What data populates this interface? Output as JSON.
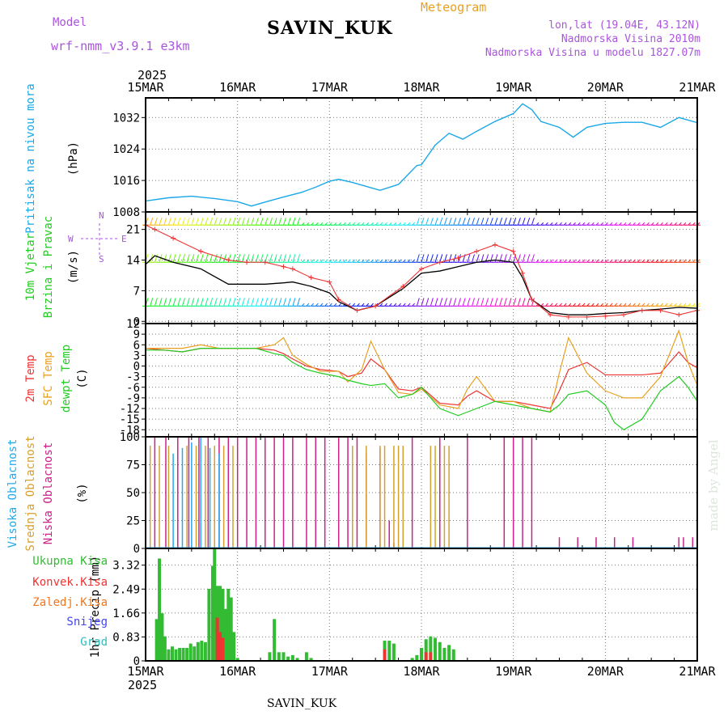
{
  "header": {
    "model_label": "Model",
    "model_name": "wrf-nmm_v3.9.1 e3km",
    "title": "SAVIN_KUK",
    "subtitle": "Meteogram",
    "coords": "lon,lat (19.04E, 43.12N)",
    "elevation": "Nadmorska Visina 2010m",
    "model_elevation": "Nadmorska Visina u modelu 1827.07m",
    "year_top": "2025",
    "year_bottom": "2025",
    "footer": "SAVIN_KUK",
    "watermark": "made by Angel"
  },
  "colors": {
    "pressure": "#1aa8e8",
    "wind_label": "#22cc22",
    "wind_dir": "#aa55dd",
    "t2m": "#ee3333",
    "tsfc": "#e8a020",
    "dewpt": "#22cc22",
    "cloud_high": "#22aaee",
    "cloud_mid": "#d4a030",
    "cloud_low": "#cc2288",
    "precip_total": "#33bb33",
    "precip_conv": "#ee3333",
    "precip_frz": "#ee7722",
    "precip_snow": "#4444ee",
    "precip_grad": "#33bbbb",
    "model": "#aa55dd"
  },
  "chart_data": [
    {
      "type": "line",
      "name": "pressure",
      "x_start": "15MAR",
      "x_end": "21MAR",
      "x_ticks": [
        "15MAR",
        "16MAR",
        "17MAR",
        "18MAR",
        "19MAR",
        "20MAR",
        "21MAR"
      ],
      "ylabel_title": "Pritisak na nivou mora",
      "ylabel_unit": "(hPa)",
      "yticks": [
        "1008",
        "1016",
        "1024",
        "1032"
      ],
      "ylim": [
        1008,
        1037
      ],
      "series": [
        {
          "name": "MSLP",
          "x": [
            0,
            0.25,
            0.5,
            0.75,
            1.0,
            1.15,
            1.3,
            1.5,
            1.7,
            1.85,
            2.0,
            2.1,
            2.25,
            2.4,
            2.55,
            2.75,
            2.95,
            3.0,
            3.15,
            3.3,
            3.45,
            3.6,
            3.8,
            4.0,
            4.1,
            4.2,
            4.3,
            4.5,
            4.65,
            4.8,
            5.0,
            5.2,
            5.4,
            5.6,
            5.8,
            6.0
          ],
          "values": [
            1010.8,
            1011.6,
            1012,
            1011.4,
            1010.6,
            1009.5,
            1010.5,
            1011.8,
            1013,
            1014.3,
            1015.8,
            1016.3,
            1015.5,
            1014.5,
            1013.5,
            1015,
            1019.8,
            1020,
            1025,
            1028,
            1026.5,
            1028.5,
            1031,
            1033,
            1035.5,
            1034,
            1031,
            1029.5,
            1027,
            1029.5,
            1030.5,
            1030.8,
            1030.8,
            1029.5,
            1032,
            1030.7
          ]
        }
      ]
    },
    {
      "type": "line",
      "name": "wind",
      "ylabel_title": "10m Vjetar",
      "ylabel_title2": "Brzina i Pravac",
      "ylabel_unit": "(m/s)",
      "compass": {
        "w": "W",
        "n": "N",
        "s": "S",
        "e": "E"
      },
      "yticks": [
        "0",
        "7",
        "14",
        "21"
      ],
      "ylim": [
        -0.5,
        25
      ],
      "series": [
        {
          "name": "wind_speed",
          "x": [
            0,
            0.1,
            0.3,
            0.6,
            0.9,
            1.1,
            1.3,
            1.5,
            1.6,
            1.8,
            2.0,
            2.1,
            2.3,
            2.5,
            2.8,
            3.0,
            3.2,
            3.4,
            3.6,
            3.8,
            4.0,
            4.1,
            4.2,
            4.4,
            4.6,
            4.8,
            5.0,
            5.2,
            5.4,
            5.6,
            5.8,
            6.0
          ],
          "values": [
            13,
            15,
            13.5,
            12,
            8.5,
            8.5,
            8.5,
            8.8,
            9,
            8,
            6.5,
            4.5,
            2.5,
            3.5,
            7.5,
            11,
            11.5,
            12.5,
            13.5,
            14,
            13.5,
            10,
            5,
            2,
            1.5,
            1.5,
            1.8,
            2,
            2.5,
            2.8,
            3.2,
            3
          ]
        },
        {
          "name": "wind_gust",
          "x": [
            0,
            0.1,
            0.3,
            0.6,
            0.9,
            1.1,
            1.3,
            1.5,
            1.6,
            1.8,
            2.0,
            2.1,
            2.3,
            2.5,
            2.8,
            3.0,
            3.2,
            3.4,
            3.6,
            3.8,
            4.0,
            4.1,
            4.2,
            4.4,
            4.6,
            4.8,
            5.0,
            5.2,
            5.4,
            5.6,
            5.8,
            6.0
          ],
          "values": [
            22,
            21,
            19,
            16,
            14,
            13.5,
            13.5,
            12.5,
            12,
            10,
            9,
            5,
            2.5,
            3.5,
            8,
            12,
            13.5,
            14.5,
            16,
            17.5,
            16,
            11,
            5,
            1.5,
            1,
            1,
            1.2,
            1.5,
            2.5,
            2.5,
            1.5,
            2.5
          ]
        }
      ]
    },
    {
      "type": "line",
      "name": "temperature",
      "ylabel_title": "2m Temp",
      "ylabel_title2": "SFC Temp",
      "ylabel_title3": "dewpt Temp",
      "ylabel_unit": "(C)",
      "yticks": [
        "-18",
        "-15",
        "-12",
        "-9",
        "-6",
        "-3",
        "0",
        "3",
        "6",
        "9",
        "12"
      ],
      "ylim": [
        -20,
        12
      ],
      "series": [
        {
          "name": "t2m",
          "x": [
            0,
            0.2,
            0.4,
            0.6,
            0.8,
            1.0,
            1.2,
            1.4,
            1.5,
            1.6,
            1.75,
            1.9,
            2.1,
            2.2,
            2.35,
            2.45,
            2.6,
            2.75,
            2.9,
            3.0,
            3.2,
            3.4,
            3.5,
            3.6,
            3.8,
            4.0,
            4.2,
            4.4,
            4.5,
            4.6,
            4.8,
            5.0,
            5.1,
            5.2,
            5.4,
            5.6,
            5.8,
            5.9,
            6.0
          ],
          "values": [
            5,
            4.5,
            4,
            5,
            5,
            5,
            5,
            4.5,
            3.5,
            2,
            0,
            -1,
            -1.5,
            -3,
            -2,
            2,
            -1,
            -6.5,
            -7,
            -6,
            -10.5,
            -11,
            -8.5,
            -7,
            -10,
            -10,
            -11,
            -12,
            -7,
            -1,
            1,
            -2.5,
            -2.5,
            -2.5,
            -2.5,
            -2,
            4,
            1,
            -0.5
          ]
        },
        {
          "name": "tsfc",
          "x": [
            0,
            0.2,
            0.4,
            0.6,
            0.8,
            1.0,
            1.2,
            1.4,
            1.5,
            1.6,
            1.75,
            1.9,
            2.1,
            2.2,
            2.35,
            2.45,
            2.6,
            2.75,
            2.9,
            3.0,
            3.2,
            3.4,
            3.5,
            3.6,
            3.8,
            4.0,
            4.2,
            4.4,
            4.5,
            4.6,
            4.8,
            5.0,
            5.1,
            5.2,
            5.4,
            5.6,
            5.8,
            5.9,
            6.0
          ],
          "values": [
            5,
            5,
            5,
            6,
            5,
            5,
            5,
            6,
            8,
            3,
            0.5,
            -1.5,
            -1.5,
            -4.5,
            -1,
            7,
            -1,
            -7.5,
            -8,
            -6.5,
            -11,
            -12,
            -6.5,
            -3,
            -10,
            -10,
            -12,
            -13,
            -2,
            8,
            -2,
            -7,
            -8,
            -9,
            -9,
            -3,
            10,
            1,
            -5.5
          ]
        },
        {
          "name": "dewpt",
          "x": [
            0,
            0.2,
            0.4,
            0.6,
            0.8,
            1.0,
            1.2,
            1.4,
            1.5,
            1.6,
            1.75,
            1.9,
            2.1,
            2.2,
            2.35,
            2.45,
            2.6,
            2.75,
            2.9,
            3.0,
            3.2,
            3.4,
            3.5,
            3.6,
            3.8,
            4.0,
            4.2,
            4.4,
            4.5,
            4.6,
            4.8,
            5.0,
            5.1,
            5.2,
            5.4,
            5.6,
            5.8,
            5.9,
            6.0
          ],
          "values": [
            4.5,
            4.5,
            4,
            5,
            5,
            5,
            5,
            3.5,
            3,
            1,
            -1,
            -2,
            -3,
            -4,
            -5,
            -5.5,
            -5,
            -9,
            -8,
            -6,
            -12,
            -14,
            -13,
            -12,
            -10,
            -11,
            -12,
            -13,
            -11,
            -8,
            -7,
            -11,
            -16,
            -18,
            -15,
            -7,
            -3,
            -6,
            -10
          ]
        }
      ]
    },
    {
      "type": "bar",
      "name": "cloud",
      "ylabel_title": "Visoka Oblacnost",
      "ylabel_title2": "Srednja Oblacnost",
      "ylabel_title3": "Niska Oblacnost",
      "ylabel_unit": "(%)",
      "yticks": [
        "0",
        "25",
        "50",
        "75",
        "100"
      ],
      "ylim": [
        0,
        100
      ],
      "series": [
        {
          "name": "low",
          "x": [
            0.1,
            0.22,
            0.35,
            0.47,
            0.58,
            0.68,
            0.8,
            0.9,
            1.0,
            1.1,
            1.2,
            1.3,
            1.4,
            1.5,
            1.6,
            1.75,
            1.85,
            1.95,
            2.1,
            2.2,
            2.3,
            2.4,
            2.55,
            2.65,
            2.7,
            2.9,
            3.2,
            3.5,
            3.9,
            4.0,
            4.1,
            4.2,
            4.5,
            4.7,
            4.9,
            5.1,
            5.3,
            5.8,
            5.85,
            5.95
          ],
          "values": [
            100,
            100,
            100,
            100,
            100,
            100,
            100,
            100,
            100,
            100,
            100,
            100,
            100,
            100,
            100,
            100,
            100,
            100,
            100,
            100,
            100,
            85,
            90,
            25,
            5,
            100,
            100,
            100,
            100,
            100,
            100,
            100,
            10,
            10,
            10,
            10,
            10,
            10,
            10,
            10
          ]
        },
        {
          "name": "mid",
          "x": [
            0.05,
            0.15,
            0.25,
            0.45,
            0.55,
            0.65,
            0.75,
            0.85,
            0.95,
            2.25,
            2.4,
            2.55,
            2.6,
            2.7,
            2.75,
            2.8,
            3.1,
            3.15,
            3.25,
            3.3
          ],
          "values": [
            92,
            92,
            92,
            92,
            92,
            92,
            92,
            92,
            92,
            92,
            92,
            92,
            92,
            92,
            92,
            92,
            92,
            92,
            92,
            92
          ]
        },
        {
          "name": "high",
          "x": [
            0.3,
            0.4,
            0.5,
            0.6,
            0.7,
            0.8
          ],
          "values": [
            85,
            90,
            95,
            100,
            90,
            85
          ]
        }
      ]
    },
    {
      "type": "bar",
      "name": "precip",
      "ylabel_title": "1hr Precip (mm)",
      "legend": [
        "Ukupna Kisa",
        "Konvek.Kisa",
        "Zaledj.Kisa",
        "Snijeg",
        "Grad"
      ],
      "yticks": [
        "0",
        "0.83",
        "1.66",
        "2.49",
        "3.32"
      ],
      "ylim": [
        0,
        3.9
      ],
      "series": [
        {
          "name": "total",
          "x": [
            0.12,
            0.15,
            0.18,
            0.21,
            0.25,
            0.29,
            0.33,
            0.37,
            0.41,
            0.45,
            0.49,
            0.53,
            0.57,
            0.61,
            0.65,
            0.69,
            0.73,
            0.75,
            0.78,
            0.81,
            0.84,
            0.87,
            0.9,
            0.93,
            0.96,
            1.0,
            1.35,
            1.4,
            1.45,
            1.5,
            1.55,
            1.6,
            1.65,
            1.75,
            1.8,
            2.6,
            2.65,
            2.7,
            2.9,
            2.95,
            3.0,
            3.05,
            3.1,
            3.15,
            3.2,
            3.25,
            3.3,
            3.35
          ],
          "values": [
            1.45,
            3.55,
            1.65,
            0.85,
            0.4,
            0.5,
            0.4,
            0.45,
            0.45,
            0.45,
            0.6,
            0.5,
            0.65,
            0.7,
            0.65,
            2.5,
            3.3,
            3.9,
            2.6,
            2.6,
            2.5,
            1.8,
            2.5,
            2.2,
            1.0,
            0.1,
            0.3,
            1.45,
            0.3,
            0.3,
            0.15,
            0.2,
            0.1,
            0.3,
            0.1,
            0.7,
            0.7,
            0.6,
            0.1,
            0.2,
            0.45,
            0.75,
            0.85,
            0.8,
            0.65,
            0.45,
            0.55,
            0.4
          ]
        },
        {
          "name": "convective",
          "x": [
            0.78,
            0.81,
            0.84,
            2.6,
            3.05,
            3.1
          ],
          "values": [
            1.5,
            1.0,
            0.8,
            0.4,
            0.3,
            0.3
          ]
        }
      ]
    }
  ]
}
